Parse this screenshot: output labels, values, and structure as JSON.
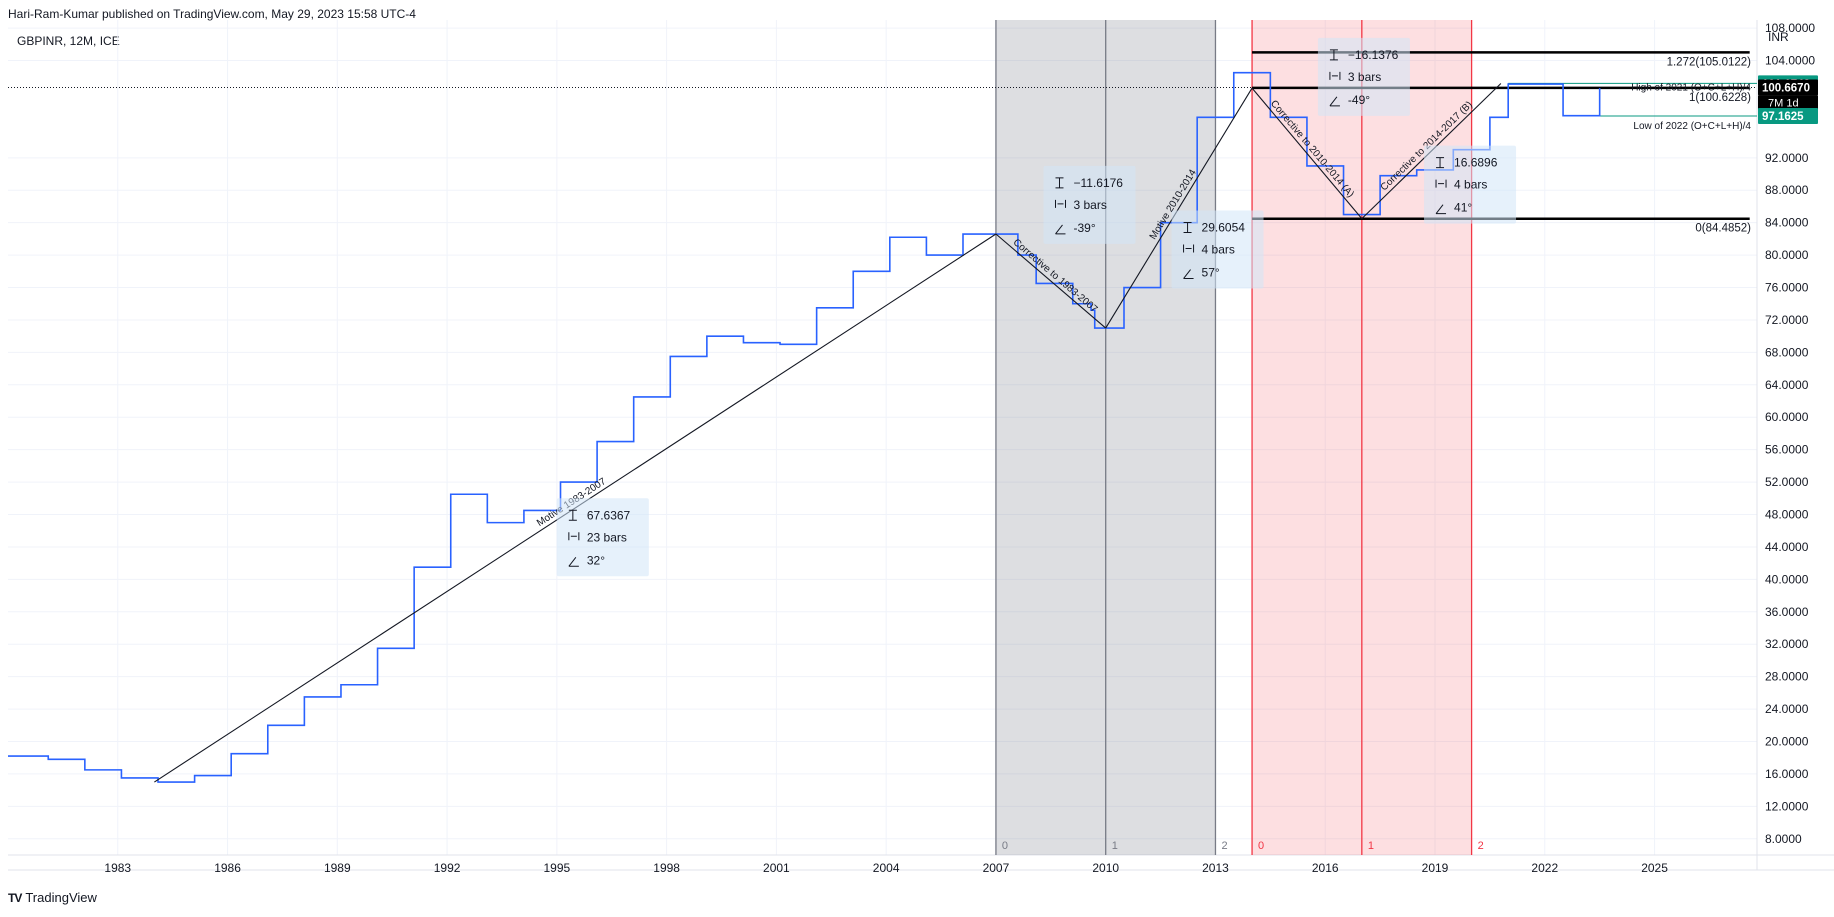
{
  "header": {
    "published": "Hari-Ram-Kumar published on TradingView.com, May 29, 2023 15:58 UTC-4",
    "symbol_line": "GBPINR, 12M, ICE"
  },
  "footer": {
    "logo": "TV",
    "brand": "TradingView"
  },
  "colors": {
    "price_line": "#2962ff",
    "wave_line": "#131722",
    "gray_zone": "#9598a1",
    "red_zone": "#f23645",
    "green_tag": "#089981",
    "stat_box": "#d1e5f7"
  },
  "chart_data": {
    "type": "line",
    "title": "",
    "currency": "INR",
    "xlabel": "",
    "ylabel": "",
    "x_range": [
      1980.0,
      2027.8
    ],
    "ylim": [
      6.0,
      109.0
    ],
    "grid": true,
    "x_ticks": [
      {
        "x": 1983,
        "label": "1983"
      },
      {
        "x": 1986,
        "label": "1986"
      },
      {
        "x": 1989,
        "label": "1989"
      },
      {
        "x": 1992,
        "label": "1992"
      },
      {
        "x": 1995,
        "label": "1995"
      },
      {
        "x": 1998,
        "label": "1998"
      },
      {
        "x": 2001,
        "label": "2001"
      },
      {
        "x": 2004,
        "label": "2004"
      },
      {
        "x": 2007,
        "label": "2007"
      },
      {
        "x": 2010,
        "label": "2010"
      },
      {
        "x": 2013,
        "label": "2013"
      },
      {
        "x": 2016,
        "label": "2016"
      },
      {
        "x": 2019,
        "label": "2019"
      },
      {
        "x": 2022,
        "label": "2022"
      },
      {
        "x": 2025,
        "label": "2025"
      }
    ],
    "y_ticks": [
      {
        "y": 8,
        "label": "8.0000"
      },
      {
        "y": 12,
        "label": "12.0000"
      },
      {
        "y": 16,
        "label": "16.0000"
      },
      {
        "y": 20,
        "label": "20.0000"
      },
      {
        "y": 24,
        "label": "24.0000"
      },
      {
        "y": 28,
        "label": "28.0000"
      },
      {
        "y": 32,
        "label": "32.0000"
      },
      {
        "y": 36,
        "label": "36.0000"
      },
      {
        "y": 40,
        "label": "40.0000"
      },
      {
        "y": 44,
        "label": "44.0000"
      },
      {
        "y": 48,
        "label": "48.0000"
      },
      {
        "y": 52,
        "label": "52.0000"
      },
      {
        "y": 56,
        "label": "56.0000"
      },
      {
        "y": 60,
        "label": "60.0000"
      },
      {
        "y": 64,
        "label": "64.0000"
      },
      {
        "y": 68,
        "label": "68.0000"
      },
      {
        "y": 72,
        "label": "72.0000"
      },
      {
        "y": 76,
        "label": "76.0000"
      },
      {
        "y": 80,
        "label": "80.0000"
      },
      {
        "y": 84,
        "label": "84.0000"
      },
      {
        "y": 88,
        "label": "88.0000"
      },
      {
        "y": 92,
        "label": "92.0000"
      },
      {
        "y": 104,
        "label": "104.0000"
      },
      {
        "y": 108,
        "label": "108.0000"
      }
    ],
    "series": [
      {
        "name": "",
        "style": "step",
        "values": [
          [
            1980.0,
            18.2
          ],
          [
            1981.1,
            17.8
          ],
          [
            1982.1,
            16.5
          ],
          [
            1983.1,
            15.5
          ],
          [
            1984.1,
            15.0
          ],
          [
            1985.1,
            15.8
          ],
          [
            1986.1,
            18.5
          ],
          [
            1987.1,
            22.0
          ],
          [
            1988.1,
            25.5
          ],
          [
            1989.1,
            27.0
          ],
          [
            1990.1,
            31.5
          ],
          [
            1991.1,
            41.5
          ],
          [
            1992.1,
            50.5
          ],
          [
            1993.1,
            47.0
          ],
          [
            1994.1,
            48.5
          ],
          [
            1995.1,
            52.0
          ],
          [
            1996.1,
            57.0
          ],
          [
            1997.1,
            62.5
          ],
          [
            1998.1,
            67.5
          ],
          [
            1999.1,
            70.0
          ],
          [
            2000.1,
            69.2
          ],
          [
            2001.1,
            69.0
          ],
          [
            2002.1,
            73.5
          ],
          [
            2003.1,
            78.0
          ],
          [
            2004.1,
            82.2
          ],
          [
            2005.1,
            80.0
          ],
          [
            2006.1,
            82.6
          ],
          [
            2007.1,
            82.6
          ],
          [
            2007.6,
            80.0
          ],
          [
            2008.1,
            76.5
          ],
          [
            2009.1,
            74.0
          ],
          [
            2009.6,
            73.2
          ],
          [
            2009.7,
            71.0
          ],
          [
            2010.5,
            76.0
          ],
          [
            2011.5,
            84.0
          ],
          [
            2012.5,
            97.0
          ],
          [
            2013.5,
            102.5
          ],
          [
            2014.5,
            97.0
          ],
          [
            2015.5,
            91.0
          ],
          [
            2016.5,
            85.0
          ],
          [
            2017.5,
            89.8
          ],
          [
            2018.5,
            90.5
          ],
          [
            2019.5,
            93.0
          ],
          [
            2020.5,
            97.0
          ],
          [
            2021.0,
            101.1
          ],
          [
            2022.5,
            97.2
          ],
          [
            2023.5,
            100.6
          ]
        ]
      }
    ],
    "wave_lines": [
      {
        "from": [
          1984.0,
          15.0
        ],
        "to": [
          2007.0,
          82.6
        ],
        "label": "Motive 1983-2007"
      },
      {
        "from": [
          2007.0,
          82.6
        ],
        "to": [
          2010.0,
          71.0
        ],
        "label": "Corrective to 1983-2007"
      },
      {
        "from": [
          2010.0,
          71.0
        ],
        "to": [
          2014.0,
          100.6
        ],
        "label": "Motive 2010-2014"
      },
      {
        "from": [
          2014.0,
          100.6
        ],
        "to": [
          2017.0,
          84.5
        ],
        "label": "Corrective to 2010-2014 (A)"
      },
      {
        "from": [
          2017.0,
          84.5
        ],
        "to": [
          2020.8,
          101.17
        ],
        "label": "Corrective to 2014-2017 (B)"
      }
    ],
    "fib_levels": [
      {
        "value": 105.0122,
        "label": "1.272(105.0122)"
      },
      {
        "value": 100.6228,
        "label": "1(100.6228)"
      },
      {
        "value": 84.4852,
        "label": "0(84.4852)"
      }
    ],
    "notes": [
      {
        "text": "High of 2021 (O+C+L+H)/4",
        "value": 101.1748
      },
      {
        "text": "Low of 2022 (O+C+L+H)/4",
        "value": 97.1625
      }
    ],
    "price_tags": [
      {
        "value": 101.1748,
        "label": "101.1748",
        "kind": "green"
      },
      {
        "value": 100.667,
        "label": "100.6670",
        "kind": "black"
      },
      {
        "value": 97.1625,
        "label": "97.1625",
        "kind": "green"
      }
    ],
    "countdown": "7M 1d",
    "current_price": 100.667,
    "time_cycles": [
      {
        "color": "gray",
        "marks": [
          {
            "x": 2007.0,
            "label": "0"
          },
          {
            "x": 2010.0,
            "label": "1"
          },
          {
            "x": 2013.0,
            "label": "2"
          }
        ]
      },
      {
        "color": "red",
        "marks": [
          {
            "x": 2014.0,
            "label": "0"
          },
          {
            "x": 2017.0,
            "label": "1"
          },
          {
            "x": 2020.0,
            "label": "2"
          }
        ]
      }
    ],
    "stat_boxes": [
      {
        "x": 1995.0,
        "y": 50.0,
        "change": "67.6367",
        "bars": "23 bars",
        "angle": "32°"
      },
      {
        "x": 2008.3,
        "y": 91.0,
        "change": "−11.6176",
        "bars": "3 bars",
        "angle": "-39°"
      },
      {
        "x": 2011.8,
        "y": 85.5,
        "change": "29.6054",
        "bars": "4 bars",
        "angle": "57°"
      },
      {
        "x": 2015.8,
        "y": 106.8,
        "change": "−16.1376",
        "bars": "3 bars",
        "angle": "-49°"
      },
      {
        "x": 2018.7,
        "y": 93.5,
        "change": "16.6896",
        "bars": "4 bars",
        "angle": "41°"
      }
    ]
  }
}
